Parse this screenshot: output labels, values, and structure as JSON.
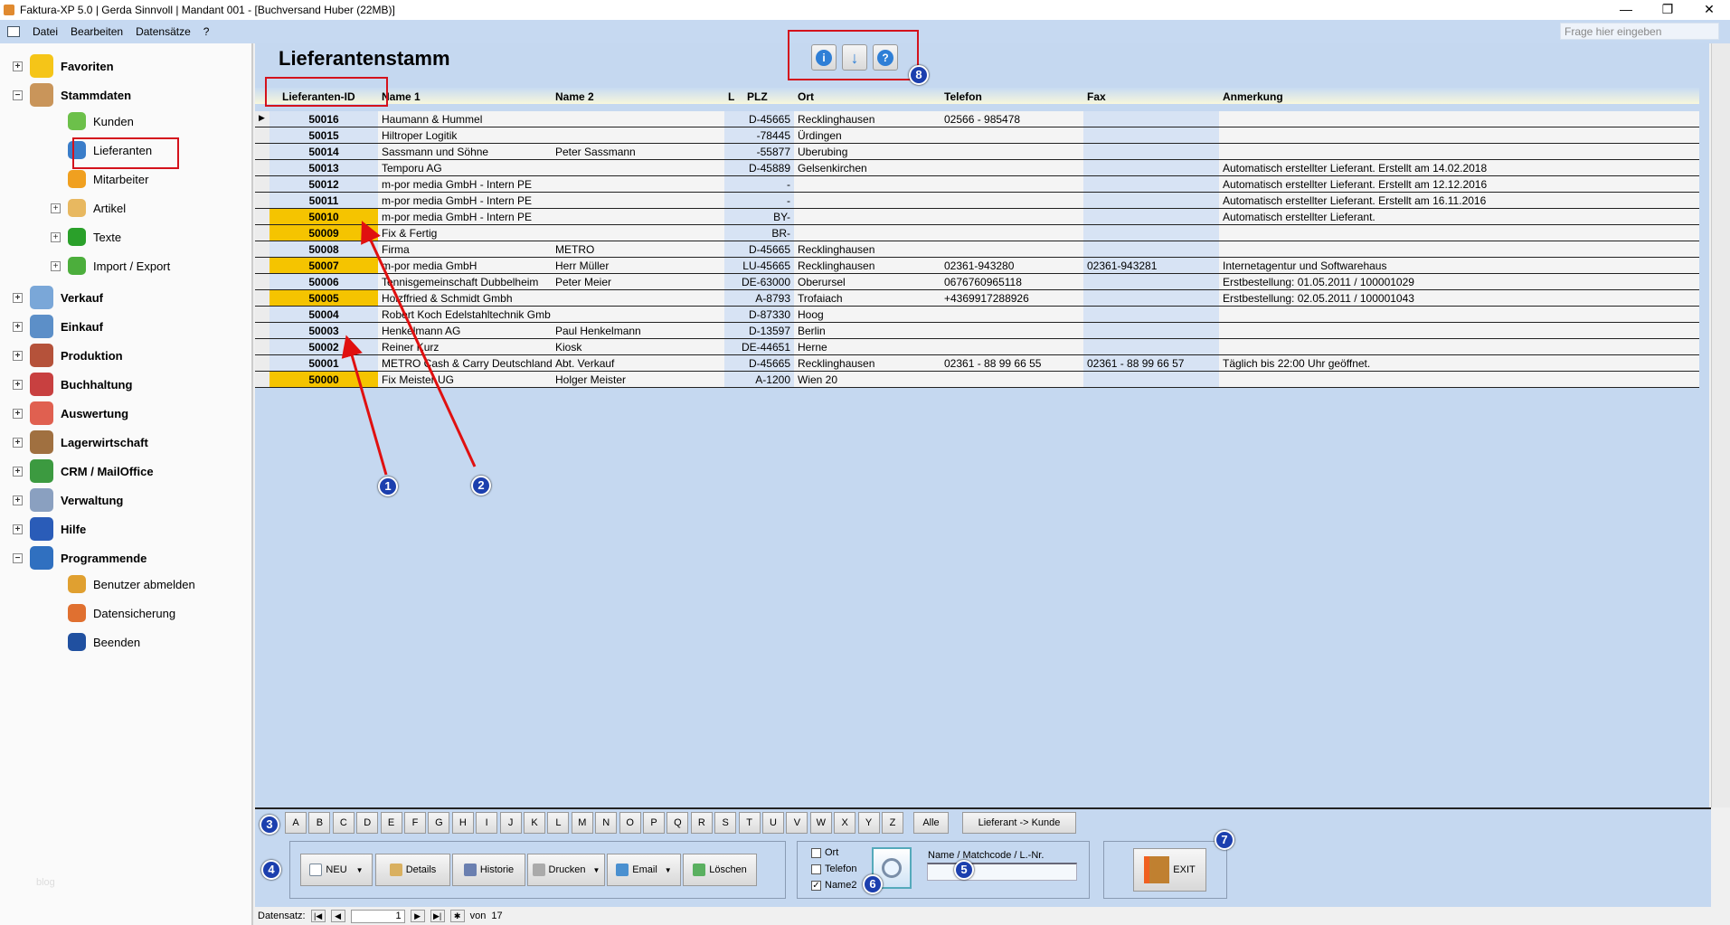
{
  "window": {
    "title": "Faktura-XP 5.0 | Gerda Sinnvoll | Mandant 001 - [Buchversand Huber (22MB)]",
    "minimize": "—",
    "restore": "❐",
    "close": "✕"
  },
  "menu": {
    "items": [
      "Datei",
      "Bearbeiten",
      "Datensätze",
      "?"
    ],
    "ask_placeholder": "Frage hier eingeben"
  },
  "sidebar": {
    "items": [
      {
        "label": "Favoriten",
        "level": 0,
        "expander": "+",
        "icon": "star-icon",
        "color": "#f5c518"
      },
      {
        "label": "Stammdaten",
        "level": 0,
        "expander": "−",
        "icon": "house-icon",
        "color": "#c9955a"
      },
      {
        "label": "Kunden",
        "level": 1,
        "icon": "person-green-icon",
        "color": "#6cc04a"
      },
      {
        "label": "Lieferanten",
        "level": 1,
        "icon": "person-blue-icon",
        "color": "#3a7dc9"
      },
      {
        "label": "Mitarbeiter",
        "level": 1,
        "icon": "person-orange-icon",
        "color": "#f0a020"
      },
      {
        "label": "Artikel",
        "level": 1,
        "expander": "+",
        "icon": "boxes-icon",
        "color": "#e8b860"
      },
      {
        "label": "Texte",
        "level": 1,
        "expander": "+",
        "icon": "text-aa-icon",
        "color": "#2aa02a"
      },
      {
        "label": "Import / Export",
        "level": 1,
        "expander": "+",
        "icon": "sync-arrows-icon",
        "color": "#4cae3c"
      },
      {
        "label": "Verkauf",
        "level": 0,
        "expander": "+",
        "icon": "sales-icon",
        "color": "#7aa7d8"
      },
      {
        "label": "Einkauf",
        "level": 0,
        "expander": "+",
        "icon": "basket-icon",
        "color": "#5c8fc8"
      },
      {
        "label": "Produktion",
        "level": 0,
        "expander": "+",
        "icon": "factory-icon",
        "color": "#b5523a"
      },
      {
        "label": "Buchhaltung",
        "level": 0,
        "expander": "+",
        "icon": "binders-icon",
        "color": "#c84040"
      },
      {
        "label": "Auswertung",
        "level": 0,
        "expander": "+",
        "icon": "chart-icon",
        "color": "#e06050"
      },
      {
        "label": "Lagerwirtschaft",
        "level": 0,
        "expander": "+",
        "icon": "warehouse-icon",
        "color": "#a07040"
      },
      {
        "label": "CRM / MailOffice",
        "level": 0,
        "expander": "+",
        "icon": "crm-icon",
        "color": "#3c9a40"
      },
      {
        "label": "Verwaltung",
        "level": 0,
        "expander": "+",
        "icon": "building-icon",
        "color": "#8aa0c0"
      },
      {
        "label": "Hilfe",
        "level": 0,
        "expander": "+",
        "icon": "help-book-icon",
        "color": "#2a5cb8"
      },
      {
        "label": "Programmende",
        "level": 0,
        "expander": "−",
        "icon": "power-icon",
        "color": "#3070c0"
      },
      {
        "label": "Benutzer abmelden",
        "level": 1,
        "icon": "users-logout-icon",
        "color": "#e0a030"
      },
      {
        "label": "Datensicherung",
        "level": 1,
        "icon": "umbrella-icon",
        "color": "#e07030"
      },
      {
        "label": "Beenden",
        "level": 1,
        "icon": "exit-door-icon",
        "color": "#2050a0"
      }
    ],
    "watermark": "blog"
  },
  "page": {
    "title": "Lieferantenstamm",
    "toolbar_icons": [
      {
        "name": "info-icon",
        "glyph": "i"
      },
      {
        "name": "download-arrow-icon",
        "glyph": "↓"
      },
      {
        "name": "help-icon",
        "glyph": "?"
      }
    ]
  },
  "table": {
    "columns": [
      "Lieferanten-ID",
      "Name 1",
      "Name 2",
      "L",
      "PLZ",
      "Ort",
      "Telefon",
      "Fax",
      "Anmerkung"
    ],
    "highlight_color": "#f5c400",
    "rows": [
      {
        "id": "50016",
        "name1": "Haumann & Hummel",
        "name2": "",
        "plz": "D-45665",
        "ort": "Recklinghausen",
        "tel": "02566 - 985478",
        "fax": "",
        "note": "",
        "hl": false
      },
      {
        "id": "50015",
        "name1": "Hiltroper Logitik",
        "name2": "",
        "plz": "-78445",
        "ort": "Ürdingen",
        "tel": "",
        "fax": "",
        "note": "",
        "hl": false
      },
      {
        "id": "50014",
        "name1": "Sassmann und Söhne",
        "name2": "Peter Sassmann",
        "plz": "-55877",
        "ort": "Uberubing",
        "tel": "",
        "fax": "",
        "note": "",
        "hl": false
      },
      {
        "id": "50013",
        "name1": "Temporu AG",
        "name2": "",
        "plz": "D-45889",
        "ort": "Gelsenkirchen",
        "tel": "",
        "fax": "",
        "note": "Automatisch erstellter Lieferant. Erstellt am 14.02.2018",
        "hl": false
      },
      {
        "id": "50012",
        "name1": "m-por media GmbH - Intern PE",
        "name2": "",
        "plz": "-",
        "ort": "",
        "tel": "",
        "fax": "",
        "note": "Automatisch erstellter Lieferant. Erstellt am 12.12.2016",
        "hl": false
      },
      {
        "id": "50011",
        "name1": "m-por media GmbH - Intern PE",
        "name2": "",
        "plz": "-",
        "ort": "",
        "tel": "",
        "fax": "",
        "note": "Automatisch erstellter Lieferant. Erstellt am 16.11.2016",
        "hl": false
      },
      {
        "id": "50010",
        "name1": "m-por media GmbH - Intern PE",
        "name2": "",
        "plz": "BY-",
        "ort": "",
        "tel": "",
        "fax": "",
        "note": "Automatisch erstellter Lieferant.",
        "hl": true
      },
      {
        "id": "50009",
        "name1": "Fix & Fertig",
        "name2": "",
        "plz": "BR-",
        "ort": "",
        "tel": "",
        "fax": "",
        "note": "",
        "hl": true
      },
      {
        "id": "50008",
        "name1": "Firma",
        "name2": "METRO",
        "plz": "D-45665",
        "ort": "Recklinghausen",
        "tel": "",
        "fax": "",
        "note": "",
        "hl": false
      },
      {
        "id": "50007",
        "name1": "m-por media GmbH",
        "name2": "Herr Müller",
        "plz": "LU-45665",
        "ort": "Recklinghausen",
        "tel": "02361-943280",
        "fax": "02361-943281",
        "note": "Internetagentur und Softwarehaus",
        "hl": true
      },
      {
        "id": "50006",
        "name1": "Tennisgemeinschaft Dubbelheim",
        "name2": "Peter Meier",
        "plz": "DE-63000",
        "ort": "Oberursel",
        "tel": "0676760965118",
        "fax": "",
        "note": "Erstbestellung: 01.05.2011 / 100001029",
        "hl": false
      },
      {
        "id": "50005",
        "name1": "Holzffried & Schmidt Gmbh",
        "name2": "",
        "plz": "A-8793",
        "ort": "Trofaiach",
        "tel": "+4369917288926",
        "fax": "",
        "note": "Erstbestellung: 02.05.2011 / 100001043",
        "hl": true
      },
      {
        "id": "50004",
        "name1": "Robert Koch Edelstahltechnik Gmb",
        "name2": "",
        "plz": "D-87330",
        "ort": "Hoog",
        "tel": "",
        "fax": "",
        "note": "",
        "hl": false
      },
      {
        "id": "50003",
        "name1": "Henkelmann AG",
        "name2": "Paul Henkelmann",
        "plz": "D-13597",
        "ort": "Berlin",
        "tel": "",
        "fax": "",
        "note": "",
        "hl": false
      },
      {
        "id": "50002",
        "name1": "Reiner Kurz",
        "name2": "Kiosk",
        "plz": "DE-44651",
        "ort": "Herne",
        "tel": "",
        "fax": "",
        "note": "",
        "hl": false
      },
      {
        "id": "50001",
        "name1": "METRO Cash & Carry Deutschland",
        "name2": "Abt. Verkauf",
        "plz": "D-45665",
        "ort": "Recklinghausen",
        "tel": "02361 - 88 99 66 55",
        "fax": "02361 - 88 99 66 57",
        "note": "Täglich bis 22:00 Uhr geöffnet.",
        "hl": false
      },
      {
        "id": "50000",
        "name1": "Fix Meister UG",
        "name2": "Holger Meister",
        "plz": "A-1200",
        "ort": "Wien 20",
        "tel": "",
        "fax": "",
        "note": "",
        "hl": true
      }
    ]
  },
  "alphabet": {
    "letters": [
      "A",
      "B",
      "C",
      "D",
      "E",
      "F",
      "G",
      "H",
      "I",
      "J",
      "K",
      "L",
      "M",
      "N",
      "O",
      "P",
      "Q",
      "R",
      "S",
      "T",
      "U",
      "V",
      "W",
      "X",
      "Y",
      "Z"
    ],
    "all": "Alle",
    "convert": "Lieferant -> Kunde"
  },
  "actions": {
    "new": "NEU",
    "details": "Details",
    "history": "Historie",
    "print": "Drucken",
    "email": "Email",
    "delete": "Löschen",
    "exit": "EXIT"
  },
  "search": {
    "options": [
      {
        "label": "Ort",
        "checked": false
      },
      {
        "label": "Telefon",
        "checked": false
      },
      {
        "label": "Name2",
        "checked": true
      }
    ],
    "field_label": "Name / Matchcode / L.-Nr.",
    "value": ""
  },
  "recordnav": {
    "label": "Datensatz:",
    "current": "1",
    "of_label": "von",
    "total": "17"
  },
  "annotations": [
    "1",
    "2",
    "3",
    "4",
    "5",
    "6",
    "7",
    "8"
  ]
}
